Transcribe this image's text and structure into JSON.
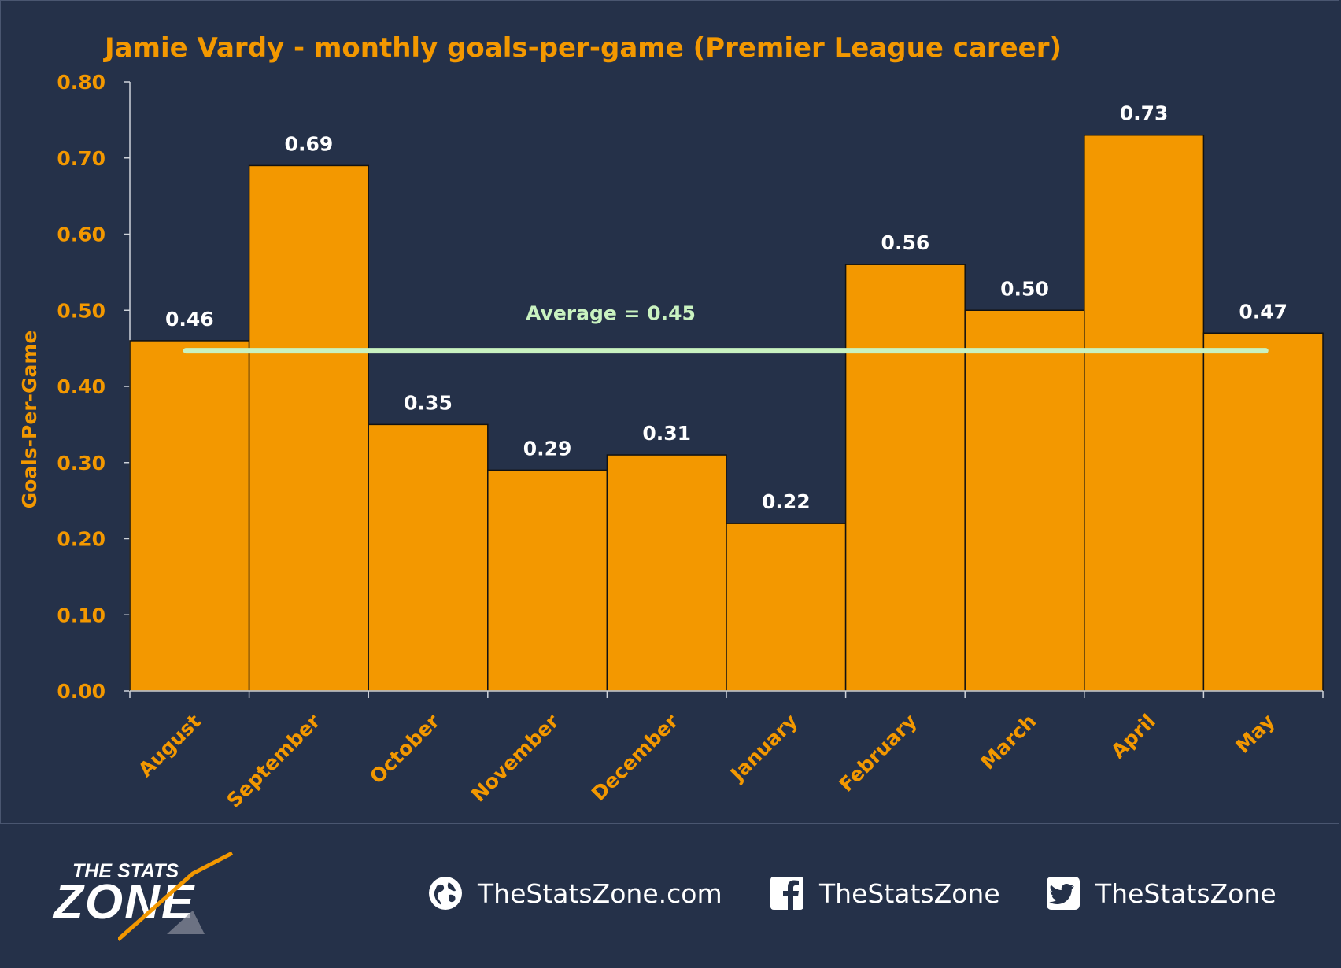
{
  "chart_data": {
    "type": "bar",
    "title": "Jamie Vardy - monthly goals-per-game (Premier League career)",
    "xlabel": "",
    "ylabel": "Goals-Per-Game",
    "ylim": [
      0,
      0.8
    ],
    "yticks": [
      "0.00",
      "0.10",
      "0.20",
      "0.30",
      "0.40",
      "0.50",
      "0.60",
      "0.70",
      "0.80"
    ],
    "categories": [
      "August",
      "September",
      "October",
      "November",
      "December",
      "January",
      "February",
      "March",
      "April",
      "May"
    ],
    "values": [
      0.46,
      0.69,
      0.35,
      0.29,
      0.31,
      0.22,
      0.56,
      0.5,
      0.73,
      0.47
    ],
    "value_labels": [
      "0.46",
      "0.69",
      "0.35",
      "0.29",
      "0.31",
      "0.22",
      "0.56",
      "0.50",
      "0.73",
      "0.47"
    ],
    "average": 0.45,
    "average_label": "Average = 0.45",
    "grid": false,
    "legend": "none",
    "colors": {
      "bar": "#f39800",
      "bar_border": "#111111",
      "average_line": "#c9f2c0",
      "axis_text": "#f39800",
      "value_text": "#ffffff",
      "background": "#253149"
    }
  },
  "footer": {
    "logo_top": "THE STATS",
    "logo_main": "ZONE",
    "website": "TheStatsZone.com",
    "facebook": "TheStatsZone",
    "twitter": "TheStatsZone",
    "icons": [
      "globe-icon",
      "facebook-icon",
      "twitter-icon"
    ]
  }
}
